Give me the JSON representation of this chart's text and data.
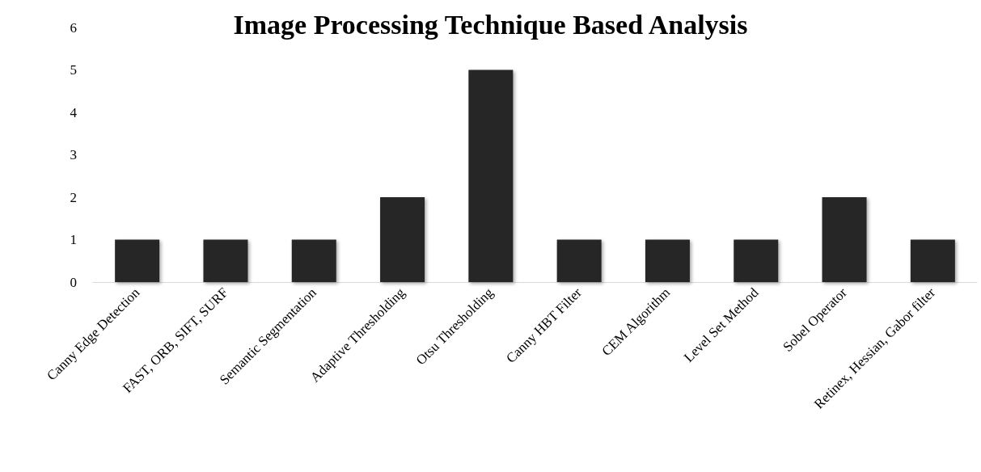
{
  "chart_data": {
    "type": "bar",
    "title": "Image Processing Technique Based Analysis",
    "categories": [
      "Canny Edge Detection",
      "FAST, ORB, SIFT, SURF",
      "Semantic Segmentation",
      "Adaptive Thresholding",
      "Otsu Thresholding",
      "Canny HBT Filter",
      "CEM Algorithm",
      "Level Set Method",
      "Sobel Operator",
      "Retinex, Hessian, Gabor filter"
    ],
    "values": [
      1,
      1,
      1,
      2,
      5,
      1,
      1,
      1,
      2,
      1
    ],
    "color": "#262626",
    "ylim": [
      0,
      6
    ],
    "yticks": [
      0,
      1,
      2,
      3,
      4,
      5,
      6
    ],
    "grid": false
  }
}
